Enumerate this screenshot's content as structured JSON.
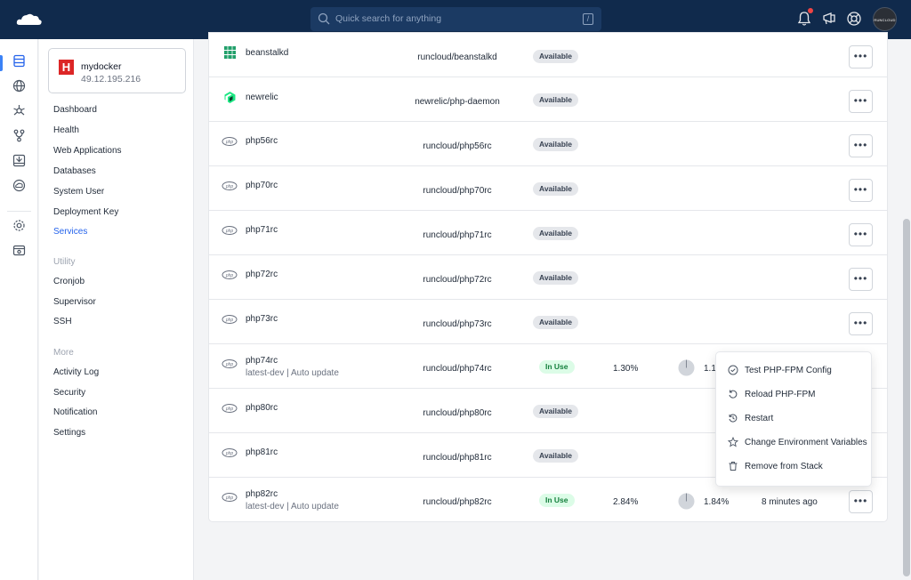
{
  "header": {
    "search_placeholder": "Quick search for anything",
    "search_shortcut": "/",
    "avatar_text": "RUNCLOUD"
  },
  "server": {
    "name": "mydocker",
    "ip": "49.12.195.216"
  },
  "sidebar": {
    "items": [
      {
        "label": "Dashboard"
      },
      {
        "label": "Health"
      },
      {
        "label": "Web Applications"
      },
      {
        "label": "Databases"
      },
      {
        "label": "System User"
      },
      {
        "label": "Deployment Key"
      },
      {
        "label": "Services",
        "active": true
      }
    ],
    "utility_title": "Utility",
    "utility_items": [
      {
        "label": "Cronjob"
      },
      {
        "label": "Supervisor"
      },
      {
        "label": "SSH"
      }
    ],
    "more_title": "More",
    "more_items": [
      {
        "label": "Activity Log"
      },
      {
        "label": "Security"
      },
      {
        "label": "Notification"
      },
      {
        "label": "Settings"
      }
    ]
  },
  "services": [
    {
      "name": "beanstalkd",
      "image": "runcloud/beanstalkd",
      "status": "Available",
      "icon": "beanstalkd-icon"
    },
    {
      "name": "newrelic",
      "image": "newrelic/php-daemon",
      "status": "Available",
      "icon": "newrelic-icon"
    },
    {
      "name": "php56rc",
      "image": "runcloud/php56rc",
      "status": "Available",
      "icon": "php-icon"
    },
    {
      "name": "php70rc",
      "image": "runcloud/php70rc",
      "status": "Available",
      "icon": "php-icon"
    },
    {
      "name": "php71rc",
      "image": "runcloud/php71rc",
      "status": "Available",
      "icon": "php-icon"
    },
    {
      "name": "php72rc",
      "image": "runcloud/php72rc",
      "status": "Available",
      "icon": "php-icon"
    },
    {
      "name": "php73rc",
      "image": "runcloud/php73rc",
      "status": "Available",
      "icon": "php-icon"
    },
    {
      "name": "php74rc",
      "subtitle": "latest-dev | Auto update",
      "image": "runcloud/php74rc",
      "status": "In Use",
      "cpu": "1.30%",
      "mem": "1.1",
      "icon": "php-icon"
    },
    {
      "name": "php80rc",
      "image": "runcloud/php80rc",
      "status": "Available",
      "icon": "php-icon"
    },
    {
      "name": "php81rc",
      "image": "runcloud/php81rc",
      "status": "Available",
      "icon": "php-icon"
    },
    {
      "name": "php82rc",
      "subtitle": "latest-dev | Auto update",
      "image": "runcloud/php82rc",
      "status": "In Use",
      "cpu": "2.84%",
      "mem": "1.84%",
      "age": "8 minutes ago",
      "icon": "php-icon"
    }
  ],
  "menu": {
    "items": [
      {
        "label": "Test PHP-FPM Config",
        "icon": "check-circle-icon"
      },
      {
        "label": "Reload PHP-FPM",
        "icon": "reload-icon"
      },
      {
        "label": "Restart",
        "icon": "restart-icon"
      },
      {
        "label": "Change Environment Variables",
        "icon": "star-icon"
      },
      {
        "label": "Remove from Stack",
        "icon": "trash-icon"
      }
    ]
  },
  "colors": {
    "header_bg": "#102a4c",
    "accent": "#2563eb",
    "in_use_bg": "#dcfce7",
    "in_use_text": "#15803d"
  }
}
